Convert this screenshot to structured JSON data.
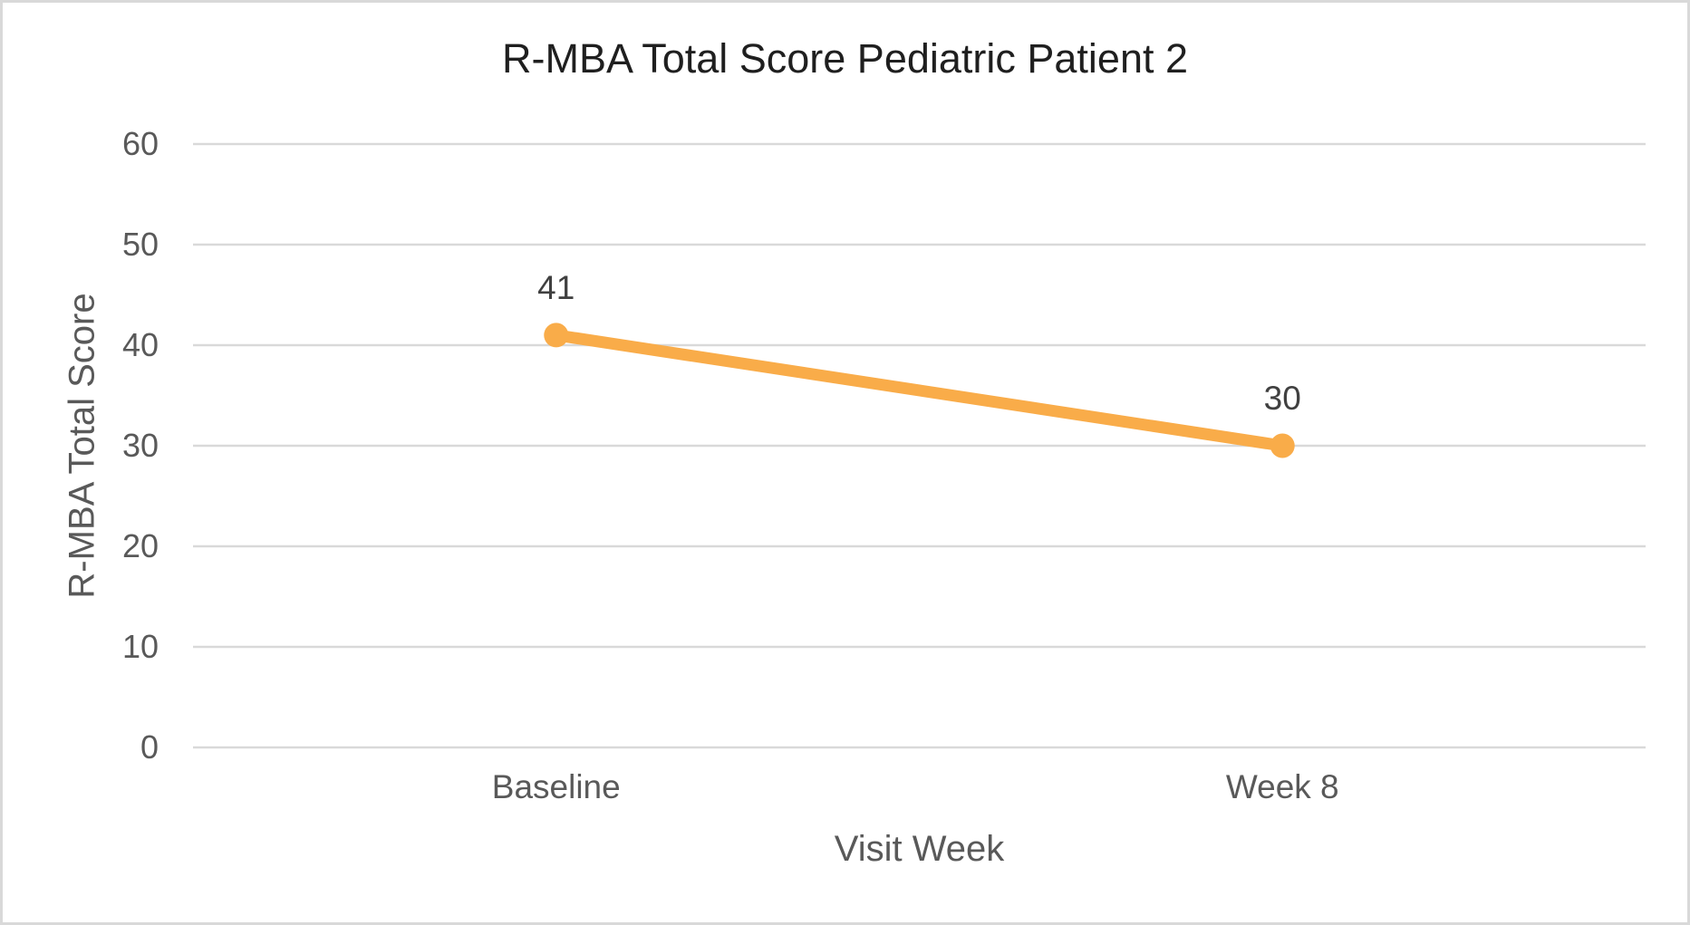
{
  "chart_data": {
    "type": "line",
    "title": "R-MBA Total Score Pediatric Patient 2",
    "xlabel": "Visit Week",
    "ylabel": "R-MBA Total Score",
    "categories": [
      "Baseline",
      "Week 8"
    ],
    "series": [
      {
        "name": "R-MBA Total Score",
        "values": [
          41,
          30
        ]
      }
    ],
    "data_labels": [
      "41",
      "30"
    ],
    "ylim": [
      0,
      60
    ],
    "yticks": [
      0,
      10,
      20,
      30,
      40,
      50,
      60
    ],
    "grid": true,
    "legend_position": "none",
    "colors": {
      "series": "#F9AC49",
      "gridline": "#D9D9D9",
      "axis_text": "#595959",
      "title_text": "#1F1F1F",
      "data_label_text": "#404040",
      "border": "#D9D9D9",
      "background": "#FFFFFF"
    }
  }
}
